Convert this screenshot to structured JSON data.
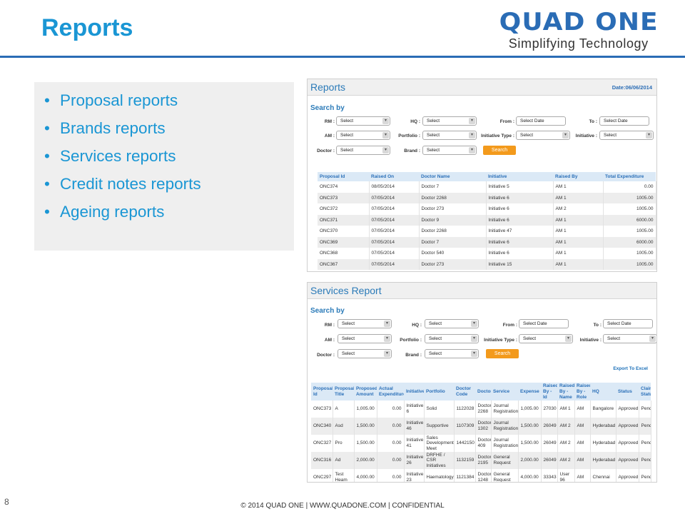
{
  "slide": {
    "title": "Reports",
    "brand_name": "QUAD ONE",
    "brand_tagline": "Simplifying Technology",
    "page_number": "8",
    "footer": "© 2014 QUAD ONE  |  WWW.QUADONE.COM  |  CONFIDENTIAL",
    "bullet_glyph": "•",
    "bullets": [
      "Proposal reports",
      "Brands reports",
      "Services reports",
      "Credit notes reports",
      "Ageing reports"
    ]
  },
  "colors": {
    "title_blue": "#1a96d4",
    "brand_blue": "#2a6cb5",
    "search_button": "#f39a1c",
    "header_row": "#dbe9f6"
  },
  "icons": {
    "dropdown": "chevron-down-icon"
  },
  "reports_screen": {
    "title": "Reports",
    "date": "Date:06/06/2014",
    "search_by": "Search by",
    "filters": {
      "rm_label": "RM :",
      "rm_value": "Select",
      "hq_label": "HQ :",
      "hq_value": "Select",
      "from_label": "From :",
      "from_value": "Select Date",
      "to_label": "To :",
      "to_value": "Select Date",
      "am_label": "AM :",
      "am_value": "Select",
      "portfolio_label": "Portfolio :",
      "portfolio_value": "Select",
      "initiative_type_label": "Initiative Type :",
      "initiative_type_value": "Select",
      "initiative_label": "Initiative :",
      "initiative_value": "Select",
      "doctor_label": "Doctor :",
      "doctor_value": "Select",
      "brand_label": "Brand :",
      "brand_value": "Select"
    },
    "search_button": "Search",
    "columns": [
      "Proposal Id",
      "Raised On",
      "Doctor Name",
      "Initiative",
      "Raised By",
      "Total Expenditure"
    ],
    "rows": [
      [
        "ONC374",
        "08/05/2014",
        "Doctor 7",
        "Initiative 5",
        "AM 1",
        "0.00"
      ],
      [
        "ONC373",
        "07/05/2014",
        "Doctor 2268",
        "Initiative 6",
        "AM 1",
        "1005.00"
      ],
      [
        "ONC372",
        "07/05/2014",
        "Doctor 273",
        "Initiative 6",
        "AM 2",
        "1005.00"
      ],
      [
        "ONC371",
        "07/05/2014",
        "Doctor 9",
        "Initiative 6",
        "AM 1",
        "6000.00"
      ],
      [
        "ONC370",
        "07/05/2014",
        "Doctor 2268",
        "Initiative 47",
        "AM 1",
        "1005.00"
      ],
      [
        "ONC369",
        "07/05/2014",
        "Doctor 7",
        "Initiative 6",
        "AM 1",
        "6000.00"
      ],
      [
        "ONC368",
        "07/05/2014",
        "Doctor 540",
        "Initiative 6",
        "AM 1",
        "1005.00"
      ],
      [
        "ONC367",
        "07/05/2014",
        "Doctor 273",
        "Initiative 15",
        "AM 1",
        "1005.00"
      ]
    ]
  },
  "services_screen": {
    "title": "Services Report",
    "search_by": "Search by",
    "filters": {
      "rm_label": "RM :",
      "rm_value": "Select",
      "hq_label": "HQ :",
      "hq_value": "Select",
      "from_label": "From :",
      "from_value": "Select Date",
      "to_label": "To :",
      "to_value": "Select Date",
      "am_label": "AM :",
      "am_value": "Select",
      "portfolio_label": "Portfolio :",
      "portfolio_value": "Select",
      "initiative_type_label": "Initiative Type :",
      "initiative_type_value": "Select",
      "initiative_label": "Initiative :",
      "initiative_value": "Select",
      "doctor_label": "Doctor :",
      "doctor_value": "Select",
      "brand_label": "Brand :",
      "brand_value": "Select"
    },
    "search_button": "Search",
    "export_link": "Export To Excel",
    "columns": [
      "Proposal Id",
      "Proposal Title",
      "Proposed Amount",
      "Actual Expenditure",
      "Initiative",
      "Portfolio",
      "Doctor Code",
      "Doctor",
      "Service",
      "Expense",
      "Raised By - Id",
      "Raised By - Name",
      "Raised By - Role",
      "HQ",
      "Status",
      "Claim Status"
    ],
    "rows": [
      [
        "ONC373",
        "A",
        "1,005.00",
        "0.00",
        "Initiative 6",
        "Solid",
        "1122028",
        "Doctor 2268",
        "Journal Registration",
        "1,005.00",
        "27030",
        "AM 1",
        "AM",
        "Bangalore",
        "Approved",
        "Pending"
      ],
      [
        "ONC340",
        "Asd",
        "1,500.00",
        "0.00",
        "Initiative 46",
        "Supportive",
        "1107309",
        "Doctor 1302",
        "Journal Registration",
        "1,500.00",
        "26049",
        "AM 2",
        "AM",
        "Hyderabad",
        "Approved",
        "Pending"
      ],
      [
        "ONC327",
        "Pro",
        "1,500.00",
        "0.00",
        "Initiative 41",
        "Sales Development Meet",
        "1442150",
        "Doctor 409",
        "Journal Registration",
        "1,500.00",
        "26049",
        "AM 2",
        "AM",
        "Hyderabad",
        "Approved",
        "Pending"
      ],
      [
        "ONC316",
        "Ad",
        "2,000.00",
        "0.00",
        "Initiative 26",
        "DRFHE / CSR Initiatives",
        "1132159",
        "Doctor 2195",
        "General Request",
        "2,000.00",
        "26049",
        "AM 2",
        "AM",
        "Hyderabad",
        "Approved",
        "Pending"
      ],
      [
        "ONC297",
        "Test Heam",
        "4,000.00",
        "0.00",
        "Initiative 23",
        "Haematology",
        "1121384",
        "Doctor 1248",
        "General Request",
        "4,000.00",
        "33343",
        "User 96",
        "AM",
        "Chennai",
        "Approved",
        "Pending"
      ]
    ]
  }
}
